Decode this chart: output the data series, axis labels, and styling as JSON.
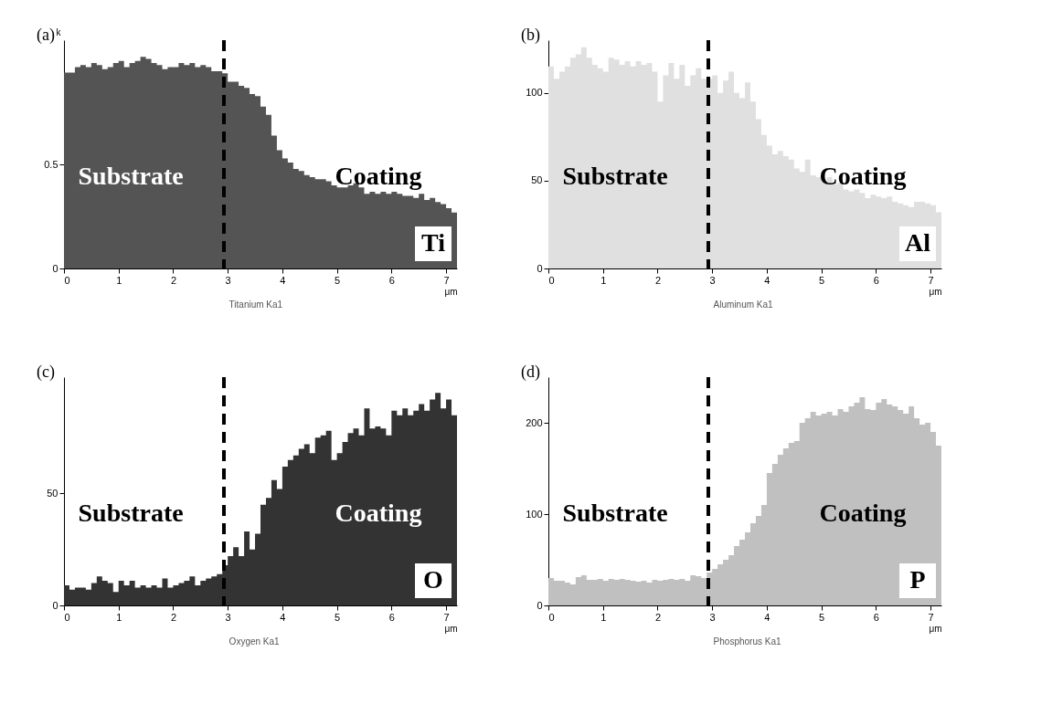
{
  "chart_data": [
    {
      "type": "area",
      "title": "(a)",
      "ylabel": "k",
      "xlabel": "μm",
      "annotations": [
        "Substrate",
        "Coating",
        "Titanium Ka1"
      ],
      "x": [
        0,
        0.1,
        0.2,
        0.3,
        0.4,
        0.5,
        0.6,
        0.7,
        0.8,
        0.9,
        1.0,
        1.1,
        1.2,
        1.3,
        1.4,
        1.5,
        1.6,
        1.7,
        1.8,
        1.9,
        2.0,
        2.1,
        2.2,
        2.3,
        2.4,
        2.5,
        2.6,
        2.7,
        2.8,
        2.9,
        3.0,
        3.1,
        3.2,
        3.3,
        3.4,
        3.5,
        3.6,
        3.7,
        3.8,
        3.9,
        4.0,
        4.1,
        4.2,
        4.3,
        4.4,
        4.5,
        4.6,
        4.7,
        4.8,
        4.9,
        5.0,
        5.1,
        5.2,
        5.3,
        5.4,
        5.5,
        5.6,
        5.7,
        5.8,
        5.9,
        6.0,
        6.1,
        6.2,
        6.3,
        6.4,
        6.5,
        6.6,
        6.7,
        6.8,
        6.9,
        7.0,
        7.1,
        7.2
      ],
      "series": [
        {
          "name": "Ti",
          "color": "#545454",
          "values": [
            0.944,
            0.944,
            0.97,
            0.98,
            0.97,
            0.99,
            0.98,
            0.96,
            0.97,
            0.99,
            1.0,
            0.97,
            0.99,
            1.0,
            1.02,
            1.01,
            0.99,
            0.98,
            0.96,
            0.97,
            0.97,
            0.99,
            0.98,
            0.99,
            0.97,
            0.98,
            0.97,
            0.95,
            0.95,
            0.94,
            0.9,
            0.9,
            0.88,
            0.87,
            0.84,
            0.83,
            0.78,
            0.74,
            0.64,
            0.57,
            0.53,
            0.51,
            0.48,
            0.47,
            0.45,
            0.44,
            0.43,
            0.43,
            0.42,
            0.4,
            0.39,
            0.39,
            0.4,
            0.41,
            0.39,
            0.36,
            0.37,
            0.36,
            0.37,
            0.36,
            0.37,
            0.36,
            0.35,
            0.35,
            0.34,
            0.36,
            0.33,
            0.34,
            0.32,
            0.31,
            0.29,
            0.27,
            0.25
          ]
        }
      ],
      "xlim": [
        0,
        7.2
      ],
      "xticks": [
        0,
        1,
        2,
        3,
        4,
        5,
        6,
        7
      ],
      "ylim": [
        0,
        1.1
      ],
      "yticks": [
        0,
        0.5
      ],
      "ref_lines": [
        {
          "axis": "x",
          "value": 2.93,
          "color": "#000000",
          "line_style": "dashed"
        }
      ]
    },
    {
      "type": "area",
      "title": "(b)",
      "xlabel": "μm",
      "annotations": [
        "Substrate",
        "Coating",
        "Aluminum Ka1"
      ],
      "x": [
        0,
        0.1,
        0.2,
        0.3,
        0.4,
        0.5,
        0.6,
        0.7,
        0.8,
        0.9,
        1.0,
        1.1,
        1.2,
        1.3,
        1.4,
        1.5,
        1.6,
        1.7,
        1.8,
        1.9,
        2.0,
        2.1,
        2.2,
        2.3,
        2.4,
        2.5,
        2.6,
        2.7,
        2.8,
        2.9,
        3.0,
        3.1,
        3.2,
        3.3,
        3.4,
        3.5,
        3.6,
        3.7,
        3.8,
        3.9,
        4.0,
        4.1,
        4.2,
        4.3,
        4.4,
        4.5,
        4.6,
        4.7,
        4.8,
        4.9,
        5.0,
        5.1,
        5.2,
        5.3,
        5.4,
        5.5,
        5.6,
        5.7,
        5.8,
        5.9,
        6.0,
        6.1,
        6.2,
        6.3,
        6.4,
        6.5,
        6.6,
        6.7,
        6.8,
        6.9,
        7.0,
        7.1,
        7.2
      ],
      "series": [
        {
          "name": "Al",
          "color": "#e0e0e0",
          "values": [
            115,
            108,
            112,
            115,
            120,
            122,
            126,
            120,
            116,
            114,
            112,
            120,
            119,
            116,
            118,
            115,
            118,
            116,
            117,
            112,
            95,
            110,
            117,
            108,
            116,
            104,
            110,
            114,
            108,
            108,
            110,
            100,
            107,
            112,
            100,
            97,
            106,
            95,
            85,
            76,
            70,
            65,
            67,
            64,
            62,
            57,
            55,
            62,
            53,
            52,
            50,
            52,
            48,
            49,
            45,
            44,
            45,
            43,
            40,
            42,
            41,
            40,
            41,
            38,
            37,
            36,
            35,
            38,
            38,
            37,
            36,
            32,
            30
          ]
        }
      ],
      "xlim": [
        0,
        7.2
      ],
      "xticks": [
        0,
        1,
        2,
        3,
        4,
        5,
        6,
        7
      ],
      "ylim": [
        0,
        130
      ],
      "yticks": [
        0,
        50,
        100
      ],
      "ref_lines": [
        {
          "axis": "x",
          "value": 2.93,
          "color": "#000000",
          "line_style": "dashed"
        }
      ]
    },
    {
      "type": "area",
      "title": "(c)",
      "xlabel": "μm",
      "annotations": [
        "Substrate",
        "Coating",
        "Oxygen Ka1"
      ],
      "x": [
        0,
        0.1,
        0.2,
        0.3,
        0.4,
        0.5,
        0.6,
        0.7,
        0.8,
        0.9,
        1.0,
        1.1,
        1.2,
        1.3,
        1.4,
        1.5,
        1.6,
        1.7,
        1.8,
        1.9,
        2.0,
        2.1,
        2.2,
        2.3,
        2.4,
        2.5,
        2.6,
        2.7,
        2.8,
        2.9,
        3.0,
        3.1,
        3.2,
        3.3,
        3.4,
        3.5,
        3.6,
        3.7,
        3.8,
        3.9,
        4.0,
        4.1,
        4.2,
        4.3,
        4.4,
        4.5,
        4.6,
        4.7,
        4.8,
        4.9,
        5.0,
        5.1,
        5.2,
        5.3,
        5.4,
        5.5,
        5.6,
        5.7,
        5.8,
        5.9,
        6.0,
        6.1,
        6.2,
        6.3,
        6.4,
        6.5,
        6.6,
        6.7,
        6.8,
        6.9,
        7.0,
        7.1,
        7.2
      ],
      "series": [
        {
          "name": "O",
          "color": "#333333",
          "values": [
            9,
            7,
            8,
            8,
            7,
            10,
            13,
            11,
            10,
            6,
            11,
            9,
            11,
            8,
            9,
            8,
            9,
            8,
            12,
            8,
            9,
            10,
            11,
            13,
            9,
            11,
            12,
            13,
            14,
            18,
            22,
            26,
            22,
            33,
            25,
            32,
            45,
            48,
            56,
            52,
            62,
            65,
            67,
            70,
            72,
            68,
            75,
            76,
            78,
            65,
            68,
            73,
            77,
            79,
            76,
            88,
            79,
            80,
            79,
            76,
            87,
            85,
            88,
            85,
            87,
            90,
            87,
            92,
            95,
            88,
            92,
            85,
            80
          ]
        }
      ],
      "xlim": [
        0,
        7.2
      ],
      "xticks": [
        0,
        1,
        2,
        3,
        4,
        5,
        6,
        7
      ],
      "ylim": [
        0,
        102
      ],
      "yticks": [
        0,
        50
      ],
      "ref_lines": [
        {
          "axis": "x",
          "value": 2.93,
          "color": "#000000",
          "line_style": "dashed"
        }
      ]
    },
    {
      "type": "area",
      "title": "(d)",
      "xlabel": "μm",
      "annotations": [
        "Substrate",
        "Coating",
        "Phosphorus Ka1"
      ],
      "x": [
        0,
        0.1,
        0.2,
        0.3,
        0.4,
        0.5,
        0.6,
        0.7,
        0.8,
        0.9,
        1.0,
        1.1,
        1.2,
        1.3,
        1.4,
        1.5,
        1.6,
        1.7,
        1.8,
        1.9,
        2.0,
        2.1,
        2.2,
        2.3,
        2.4,
        2.5,
        2.6,
        2.7,
        2.8,
        2.9,
        3.0,
        3.1,
        3.2,
        3.3,
        3.4,
        3.5,
        3.6,
        3.7,
        3.8,
        3.9,
        4.0,
        4.1,
        4.2,
        4.3,
        4.4,
        4.5,
        4.6,
        4.7,
        4.8,
        4.9,
        5.0,
        5.1,
        5.2,
        5.3,
        5.4,
        5.5,
        5.6,
        5.7,
        5.8,
        5.9,
        6.0,
        6.1,
        6.2,
        6.3,
        6.4,
        6.5,
        6.6,
        6.7,
        6.8,
        6.9,
        7.0,
        7.1,
        7.2
      ],
      "series": [
        {
          "name": "P",
          "color": "#c0c0c0",
          "values": [
            30,
            27,
            27,
            25,
            23,
            31,
            33,
            28,
            28,
            29,
            27,
            29,
            28,
            29,
            28,
            27,
            26,
            27,
            25,
            28,
            27,
            28,
            29,
            28,
            29,
            27,
            33,
            32,
            30,
            36,
            40,
            45,
            50,
            55,
            65,
            72,
            80,
            90,
            98,
            110,
            145,
            155,
            165,
            172,
            178,
            180,
            200,
            205,
            212,
            208,
            210,
            212,
            208,
            215,
            212,
            218,
            222,
            228,
            215,
            214,
            222,
            226,
            220,
            218,
            214,
            210,
            218,
            205,
            198,
            200,
            190,
            175,
            165
          ]
        }
      ],
      "xlim": [
        0,
        7.2
      ],
      "xticks": [
        0,
        1,
        2,
        3,
        4,
        5,
        6,
        7
      ],
      "ylim": [
        0,
        250
      ],
      "yticks": [
        0,
        100,
        200
      ],
      "ref_lines": [
        {
          "axis": "x",
          "value": 2.93,
          "color": "#000000",
          "line_style": "dashed"
        }
      ]
    }
  ]
}
